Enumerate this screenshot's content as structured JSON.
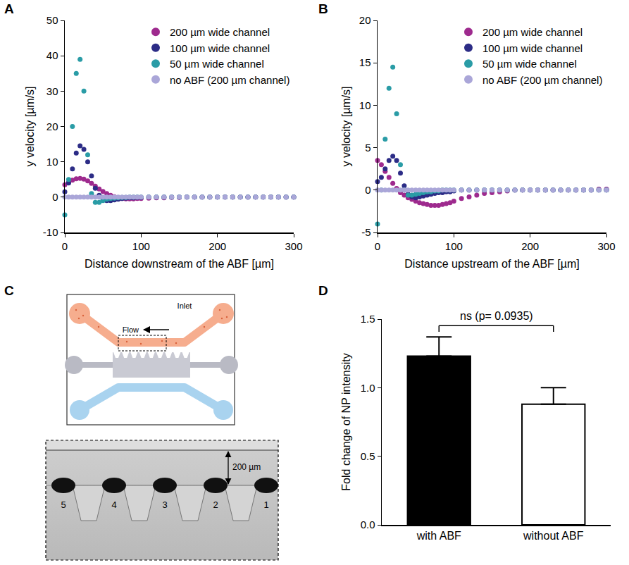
{
  "chart_data": [
    {
      "type": "scatter",
      "panel": "A",
      "marker": "circle",
      "grid": false,
      "legend": "upper right",
      "x_label": "Distance downstream of the ABF [µm]",
      "y_label": "y velocity [µm/s]",
      "xlim": [
        0,
        300
      ],
      "xticks": [
        0,
        100,
        200,
        300
      ],
      "ylim": [
        -10,
        50
      ],
      "yticks": [
        -10,
        0,
        10,
        20,
        30,
        40,
        50
      ],
      "x": [
        0,
        5,
        10,
        15,
        20,
        25,
        30,
        35,
        40,
        45,
        50,
        55,
        60,
        65,
        70,
        75,
        80,
        85,
        90,
        95,
        100,
        110,
        120,
        130,
        140,
        150,
        160,
        170,
        180,
        190,
        200,
        210,
        220,
        230,
        240,
        250,
        260,
        270,
        280,
        290,
        300
      ],
      "series": [
        {
          "name": "200 µm wide channel",
          "color": "#9e2a8e",
          "values": [
            3.5,
            4.2,
            4.8,
            5.2,
            5.3,
            5.1,
            4.6,
            3.9,
            3.1,
            2.3,
            1.6,
            1.0,
            0.5,
            0.1,
            -0.2,
            -0.4,
            -0.5,
            -0.5,
            -0.5,
            -0.4,
            -0.4,
            -0.3,
            -0.2,
            -0.2,
            -0.1,
            -0.1,
            0,
            0,
            0,
            0,
            0,
            0,
            0,
            0,
            0,
            0,
            0,
            0,
            0,
            0,
            0
          ]
        },
        {
          "name": "100 µm wide channel",
          "color": "#2c2c86",
          "values": [
            1.5,
            4,
            8,
            12.5,
            14.5,
            13.5,
            10,
            6,
            2.5,
            0.5,
            -0.6,
            -1,
            -1,
            -0.8,
            -0.6,
            -0.4,
            -0.3,
            -0.2,
            -0.2,
            -0.1,
            -0.1,
            0,
            0,
            0,
            0,
            0,
            0,
            0,
            0,
            0,
            0,
            0,
            0,
            0,
            0,
            0,
            0,
            0,
            0,
            0,
            0
          ]
        },
        {
          "name": "50 µm wide channel",
          "color": "#2a9ca6",
          "values": [
            -5,
            5,
            20,
            35,
            39,
            30,
            12,
            1,
            -1.5,
            -1.5,
            -1,
            -0.6,
            -0.4,
            -0.3,
            -0.2,
            -0.1,
            -0.1,
            0,
            0,
            0,
            0,
            0,
            0,
            0,
            0,
            0,
            0,
            0,
            0,
            0,
            0,
            0,
            0,
            0,
            0,
            0,
            0,
            0,
            0,
            0,
            0
          ]
        },
        {
          "name": "no ABF (200 µm channel)",
          "color": "#aaa6d8",
          "values": [
            0,
            0,
            0,
            0,
            0,
            0,
            0,
            0,
            0,
            0,
            0,
            0,
            0,
            0,
            0,
            0,
            0,
            0,
            0,
            0,
            0,
            0,
            0,
            0,
            0,
            0,
            0,
            0,
            0,
            0,
            0,
            0,
            0,
            0,
            0,
            0,
            0,
            0,
            0,
            0,
            0
          ]
        }
      ]
    },
    {
      "type": "scatter",
      "panel": "B",
      "marker": "circle",
      "grid": false,
      "legend": "upper right",
      "x_label": "Distance upstream of the ABF [µm]",
      "y_label": "y velocity [µm/s]",
      "xlim": [
        0,
        300
      ],
      "xticks": [
        0,
        100,
        200,
        300
      ],
      "ylim": [
        -5,
        20
      ],
      "yticks": [
        -5,
        0,
        5,
        10,
        15,
        20
      ],
      "x": [
        0,
        5,
        10,
        15,
        20,
        25,
        30,
        35,
        40,
        45,
        50,
        55,
        60,
        65,
        70,
        75,
        80,
        85,
        90,
        95,
        100,
        110,
        120,
        130,
        140,
        150,
        160,
        170,
        180,
        190,
        200,
        210,
        220,
        230,
        240,
        250,
        260,
        270,
        280,
        290,
        300
      ],
      "series": [
        {
          "name": "200 µm wide channel",
          "color": "#9e2a8e",
          "values": [
            3.5,
            3,
            2.2,
            1.5,
            0.8,
            0.2,
            -0.3,
            -0.6,
            -0.9,
            -1.1,
            -1.3,
            -1.5,
            -1.6,
            -1.7,
            -1.8,
            -1.8,
            -1.8,
            -1.7,
            -1.6,
            -1.5,
            -1.3,
            -1.0,
            -0.8,
            -0.6,
            -0.4,
            -0.3,
            -0.2,
            -0.1,
            0,
            0,
            0,
            0,
            0,
            0,
            0,
            0,
            0,
            0,
            0,
            0.1,
            0.1
          ]
        },
        {
          "name": "100 µm wide channel",
          "color": "#2c2c86",
          "values": [
            1,
            1.5,
            2.5,
            3.5,
            4,
            3.5,
            2,
            0.5,
            -0.5,
            -0.8,
            -0.9,
            -0.8,
            -0.7,
            -0.6,
            -0.5,
            -0.4,
            -0.3,
            -0.3,
            -0.2,
            -0.2,
            -0.1,
            0,
            0,
            0,
            0,
            0,
            0,
            0,
            0,
            0,
            0,
            0,
            0,
            0,
            0,
            0,
            0,
            0,
            0,
            0,
            0
          ]
        },
        {
          "name": "50 µm wide channel",
          "color": "#2a9ca6",
          "values": [
            -4,
            0,
            6,
            12,
            14.5,
            9,
            3,
            0,
            -0.6,
            -0.6,
            -0.5,
            -0.4,
            -0.3,
            -0.2,
            -0.2,
            -0.1,
            -0.1,
            0,
            0,
            0,
            0,
            0,
            0,
            0,
            0,
            0,
            0,
            0,
            0,
            0,
            0,
            0,
            0,
            0,
            0,
            0,
            0,
            0,
            0,
            0,
            0
          ]
        },
        {
          "name": "no ABF (200 µm channel)",
          "color": "#aaa6d8",
          "values": [
            0,
            0,
            0,
            0,
            0,
            0,
            0,
            0,
            0,
            0,
            0,
            0,
            0,
            0,
            0,
            0,
            0,
            0,
            0,
            0,
            0,
            0,
            0,
            0,
            0,
            0,
            0,
            0,
            0,
            0,
            0,
            0,
            0,
            0,
            0,
            0,
            0,
            0,
            0,
            0,
            0
          ]
        }
      ]
    },
    {
      "type": "bar",
      "panel": "D",
      "grid": false,
      "y_label": "Fold change of NP intensity",
      "categories": [
        "with ABF",
        "without ABF"
      ],
      "values": [
        1.23,
        0.88
      ],
      "errors": [
        0.14,
        0.12
      ],
      "colors": [
        "#000000",
        "#ffffff"
      ],
      "ylim": [
        0,
        1.5
      ],
      "yticks": [
        {
          "value": 0,
          "label": "0.0"
        },
        {
          "value": 0.5,
          "label": "0.5"
        },
        {
          "value": 1,
          "label": "1.0"
        },
        {
          "value": 1.5,
          "label": "1.5"
        }
      ],
      "annotations": [
        "ns (p= 0.0935)"
      ]
    }
  ],
  "diagram": {
    "panel": "C",
    "labels": {
      "inlet": "Inlet",
      "flow": "Flow",
      "scale": "200 µm"
    },
    "posts": [
      "5",
      "4",
      "3",
      "2",
      "1"
    ]
  }
}
